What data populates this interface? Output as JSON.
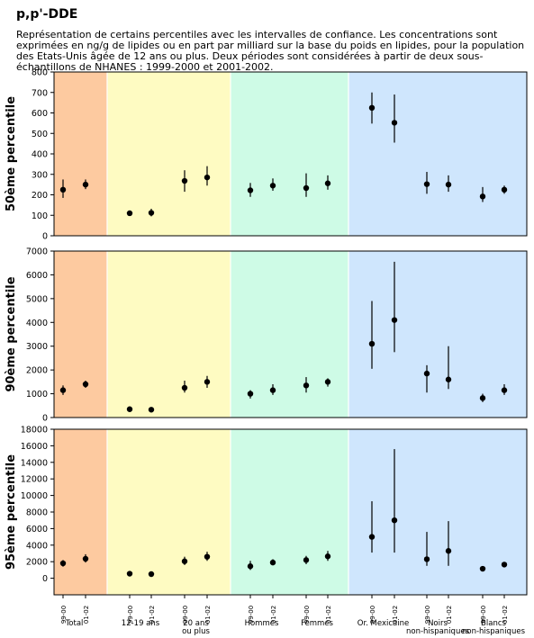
{
  "title": "p,p'-DDE",
  "subtitle": "Représentation de certains percentiles avec les intervalles de confiance. Les concentrations sont exprimées en ng/g de lipides ou en part par milliard sur la base du poids en lipides, pour la population des Etats-Unis âgée de 12 ans ou plus. Deux périodes sont considérées à partir de deux sous-échantillons de NHANES : 1999-2000 et 2001-2002.",
  "group_colors": {
    "Total": "#fdcaa0",
    "12-19 ans": "#fefbc2",
    "20 ans ou plus": "#fefbc2",
    "Hommes": "#cefbe6",
    "Femmes": "#cefbe6",
    "Or. Mexicaine": "#cfe6fd",
    "Noirs non-hispaniques": "#cfe6fd",
    "Blancs non-hispaniques": "#cfe6fd"
  },
  "chart_data": [
    {
      "type": "scatter",
      "ylabel": "50ème percentile",
      "ylim": [
        0,
        800
      ],
      "yticks": [
        0,
        100,
        200,
        300,
        400,
        500,
        600,
        700,
        800
      ],
      "categories": [
        "Total",
        "12-19 ans",
        "20 ans ou plus",
        "Hommes",
        "Femmes",
        "Or. Mexicaine",
        "Noirs non-hispaniques",
        "Blancs non-hispaniques"
      ],
      "periods": [
        "99-00",
        "01-02"
      ],
      "points": [
        {
          "group": "Total",
          "period": "99-00",
          "value": 225,
          "low": 185,
          "high": 275
        },
        {
          "group": "Total",
          "period": "01-02",
          "value": 250,
          "low": 228,
          "high": 275
        },
        {
          "group": "12-19 ans",
          "period": "99-00",
          "value": 110,
          "low": 100,
          "high": 118
        },
        {
          "group": "12-19 ans",
          "period": "01-02",
          "value": 112,
          "low": 95,
          "high": 132
        },
        {
          "group": "20 ans ou plus",
          "period": "99-00",
          "value": 268,
          "low": 215,
          "high": 320
        },
        {
          "group": "20 ans ou plus",
          "period": "01-02",
          "value": 285,
          "low": 245,
          "high": 340
        },
        {
          "group": "Hommes",
          "period": "99-00",
          "value": 222,
          "low": 190,
          "high": 258
        },
        {
          "group": "Hommes",
          "period": "01-02",
          "value": 245,
          "low": 220,
          "high": 280
        },
        {
          "group": "Femmes",
          "period": "99-00",
          "value": 233,
          "low": 190,
          "high": 305
        },
        {
          "group": "Femmes",
          "period": "01-02",
          "value": 256,
          "low": 225,
          "high": 295
        },
        {
          "group": "Or. Mexicaine",
          "period": "99-00",
          "value": 625,
          "low": 548,
          "high": 700
        },
        {
          "group": "Or. Mexicaine",
          "period": "01-02",
          "value": 552,
          "low": 455,
          "high": 690
        },
        {
          "group": "Noirs non-hispaniques",
          "period": "99-00",
          "value": 252,
          "low": 205,
          "high": 312
        },
        {
          "group": "Noirs non-hispaniques",
          "period": "01-02",
          "value": 250,
          "low": 215,
          "high": 295
        },
        {
          "group": "Blancs non-hispaniques",
          "period": "99-00",
          "value": 192,
          "low": 165,
          "high": 238
        },
        {
          "group": "Blancs non-hispaniques",
          "period": "01-02",
          "value": 225,
          "low": 205,
          "high": 245
        }
      ]
    },
    {
      "type": "scatter",
      "ylabel": "90ème percentile",
      "ylim": [
        0,
        7000
      ],
      "yticks": [
        0,
        1000,
        2000,
        3000,
        4000,
        5000,
        6000,
        7000
      ],
      "categories": [
        "Total",
        "12-19 ans",
        "20 ans ou plus",
        "Hommes",
        "Femmes",
        "Or. Mexicaine",
        "Noirs non-hispaniques",
        "Blancs non-hispaniques"
      ],
      "periods": [
        "99-00",
        "01-02"
      ],
      "points": [
        {
          "group": "Total",
          "period": "99-00",
          "value": 1150,
          "low": 950,
          "high": 1350
        },
        {
          "group": "Total",
          "period": "01-02",
          "value": 1400,
          "low": 1250,
          "high": 1550
        },
        {
          "group": "12-19 ans",
          "period": "99-00",
          "value": 350,
          "low": 280,
          "high": 420
        },
        {
          "group": "12-19 ans",
          "period": "01-02",
          "value": 330,
          "low": 280,
          "high": 400
        },
        {
          "group": "20 ans ou plus",
          "period": "99-00",
          "value": 1250,
          "low": 1050,
          "high": 1550
        },
        {
          "group": "20 ans ou plus",
          "period": "01-02",
          "value": 1500,
          "low": 1250,
          "high": 1750
        },
        {
          "group": "Hommes",
          "period": "99-00",
          "value": 1000,
          "low": 800,
          "high": 1150
        },
        {
          "group": "Hommes",
          "period": "01-02",
          "value": 1150,
          "low": 950,
          "high": 1400
        },
        {
          "group": "Femmes",
          "period": "99-00",
          "value": 1350,
          "low": 1050,
          "high": 1700
        },
        {
          "group": "Femmes",
          "period": "01-02",
          "value": 1500,
          "low": 1300,
          "high": 1650
        },
        {
          "group": "Or. Mexicaine",
          "period": "99-00",
          "value": 3100,
          "low": 2050,
          "high": 4900
        },
        {
          "group": "Or. Mexicaine",
          "period": "01-02",
          "value": 4100,
          "low": 2750,
          "high": 6550
        },
        {
          "group": "Noirs non-hispaniques",
          "period": "99-00",
          "value": 1850,
          "low": 1050,
          "high": 2200
        },
        {
          "group": "Noirs non-hispaniques",
          "period": "01-02",
          "value": 1600,
          "low": 1200,
          "high": 3000
        },
        {
          "group": "Blancs non-hispaniques",
          "period": "99-00",
          "value": 820,
          "low": 650,
          "high": 1000
        },
        {
          "group": "Blancs non-hispaniques",
          "period": "01-02",
          "value": 1150,
          "low": 950,
          "high": 1400
        }
      ]
    },
    {
      "type": "scatter",
      "ylabel": "95ème percentile",
      "ylim": [
        -2000,
        18000
      ],
      "yticks": [
        0,
        2000,
        4000,
        6000,
        8000,
        10000,
        12000,
        14000,
        16000,
        18000
      ],
      "categories": [
        "Total",
        "12-19 ans",
        "20 ans ou plus",
        "Hommes",
        "Femmes",
        "Or. Mexicaine",
        "Noirs non-hispaniques",
        "Blancs non-hispaniques"
      ],
      "periods": [
        "99-00",
        "01-02"
      ],
      "points": [
        {
          "group": "Total",
          "period": "99-00",
          "value": 1800,
          "low": 1400,
          "high": 2200
        },
        {
          "group": "Total",
          "period": "01-02",
          "value": 2350,
          "low": 1900,
          "high": 2900
        },
        {
          "group": "12-19 ans",
          "period": "99-00",
          "value": 550,
          "low": 450,
          "high": 700
        },
        {
          "group": "12-19 ans",
          "period": "01-02",
          "value": 500,
          "low": 400,
          "high": 650
        },
        {
          "group": "20 ans ou plus",
          "period": "99-00",
          "value": 2050,
          "low": 1600,
          "high": 2600
        },
        {
          "group": "20 ans ou plus",
          "period": "01-02",
          "value": 2600,
          "low": 2100,
          "high": 3200
        },
        {
          "group": "Hommes",
          "period": "99-00",
          "value": 1450,
          "low": 1000,
          "high": 2100
        },
        {
          "group": "Hommes",
          "period": "01-02",
          "value": 1900,
          "low": 1600,
          "high": 2300
        },
        {
          "group": "Femmes",
          "period": "99-00",
          "value": 2200,
          "low": 1700,
          "high": 2700
        },
        {
          "group": "Femmes",
          "period": "01-02",
          "value": 2650,
          "low": 2100,
          "high": 3300
        },
        {
          "group": "Or. Mexicaine",
          "period": "99-00",
          "value": 5000,
          "low": 3100,
          "high": 9300
        },
        {
          "group": "Or. Mexicaine",
          "period": "01-02",
          "value": 7000,
          "low": 3100,
          "high": 15600
        },
        {
          "group": "Noirs non-hispaniques",
          "period": "99-00",
          "value": 2300,
          "low": 1500,
          "high": 5600
        },
        {
          "group": "Noirs non-hispaniques",
          "period": "01-02",
          "value": 3300,
          "low": 1500,
          "high": 6900
        },
        {
          "group": "Blancs non-hispaniques",
          "period": "99-00",
          "value": 1150,
          "low": 1000,
          "high": 1350
        },
        {
          "group": "Blancs non-hispaniques",
          "period": "01-02",
          "value": 1650,
          "low": 1450,
          "high": 1850
        }
      ]
    }
  ],
  "x_labels": [
    {
      "group": "Total",
      "lines": [
        "Total"
      ]
    },
    {
      "group": "12-19 ans",
      "lines": [
        "12-19 ans"
      ]
    },
    {
      "group": "20 ans ou plus",
      "lines": [
        "20 ans",
        "ou plus"
      ]
    },
    {
      "group": "Hommes",
      "lines": [
        "Hommes"
      ]
    },
    {
      "group": "Femmes",
      "lines": [
        "Femmes"
      ]
    },
    {
      "group": "Or. Mexicaine",
      "lines": [
        "Or. Mexicaine"
      ]
    },
    {
      "group": "Noirs non-hispaniques",
      "lines": [
        "Noirs",
        "non-hispaniques"
      ]
    },
    {
      "group": "Blancs non-hispaniques",
      "lines": [
        "Blancs",
        "non-hispaniques"
      ]
    }
  ]
}
